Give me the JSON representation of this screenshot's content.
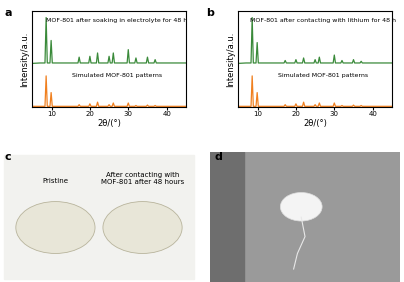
{
  "chart_data": [
    {
      "type": "line",
      "panel": "a",
      "x_label": "2θ/(°)",
      "y_label": "Intensity/a.u.",
      "xlim": [
        5,
        45
      ],
      "xticks": [
        10,
        20,
        30,
        40
      ],
      "ylim": [
        0,
        2.3
      ],
      "yticks": [],
      "tick_labels": "x",
      "x": [
        5,
        7,
        8.3,
        8.6,
        8.9,
        9.6,
        9.9,
        10.2,
        16.9,
        17.2,
        17.5,
        19.7,
        20.0,
        20.3,
        21.7,
        22.0,
        22.3,
        24.7,
        25.0,
        25.3,
        25.8,
        26.1,
        26.4,
        29.7,
        30.0,
        30.3,
        31.7,
        32.0,
        32.3,
        34.7,
        35.0,
        35.3,
        36.7,
        37.0,
        37.3,
        45
      ],
      "series": [
        {
          "name": "MOF-801 after soaking in electrolyte for 48 h",
          "color": "#3a8a3a",
          "values": [
            1.05,
            1.06,
            1.06,
            2.15,
            1.06,
            1.06,
            1.6,
            1.06,
            1.06,
            1.2,
            1.06,
            1.06,
            1.22,
            1.06,
            1.06,
            1.3,
            1.06,
            1.06,
            1.22,
            1.06,
            1.06,
            1.3,
            1.06,
            1.06,
            1.38,
            1.06,
            1.06,
            1.18,
            1.06,
            1.06,
            1.2,
            1.06,
            1.06,
            1.14,
            1.06,
            1.06
          ]
        },
        {
          "name": "Simulated MOF-801 patterns",
          "color": "#f08020",
          "values": [
            0.02,
            0.02,
            0.02,
            0.75,
            0.02,
            0.02,
            0.35,
            0.02,
            0.02,
            0.06,
            0.02,
            0.02,
            0.08,
            0.02,
            0.02,
            0.12,
            0.02,
            0.02,
            0.06,
            0.02,
            0.02,
            0.1,
            0.02,
            0.02,
            0.1,
            0.02,
            0.02,
            0.04,
            0.02,
            0.02,
            0.05,
            0.02,
            0.02,
            0.04,
            0.02,
            0.02
          ]
        }
      ]
    },
    {
      "type": "line",
      "panel": "b",
      "x_label": "2θ/(°)",
      "y_label": "Intensity/a.u.",
      "xlim": [
        5,
        45
      ],
      "xticks": [
        10,
        20,
        30,
        40
      ],
      "ylim": [
        0,
        2.3
      ],
      "yticks": [],
      "tick_labels": "x",
      "x": [
        5,
        7,
        8.3,
        8.6,
        8.9,
        9.6,
        9.9,
        10.2,
        16.9,
        17.2,
        17.5,
        19.7,
        20.0,
        20.3,
        21.7,
        22.0,
        22.3,
        24.7,
        25.0,
        25.3,
        25.8,
        26.1,
        26.4,
        29.7,
        30.0,
        30.3,
        31.7,
        32.0,
        32.3,
        34.7,
        35.0,
        35.3,
        36.7,
        37.0,
        37.3,
        45
      ],
      "series": [
        {
          "name": "MOF-801 after contacting with lithium for 48 h",
          "color": "#3a8a3a",
          "values": [
            1.05,
            1.06,
            1.06,
            2.15,
            1.06,
            1.06,
            1.55,
            1.06,
            1.06,
            1.12,
            1.06,
            1.06,
            1.14,
            1.06,
            1.06,
            1.18,
            1.06,
            1.06,
            1.14,
            1.06,
            1.06,
            1.2,
            1.06,
            1.06,
            1.25,
            1.06,
            1.06,
            1.12,
            1.06,
            1.06,
            1.14,
            1.06,
            1.06,
            1.1,
            1.06,
            1.06
          ]
        },
        {
          "name": "Simulated MOF-801 patterns",
          "color": "#f08020",
          "values": [
            0.02,
            0.02,
            0.02,
            0.75,
            0.02,
            0.02,
            0.35,
            0.02,
            0.02,
            0.06,
            0.02,
            0.02,
            0.08,
            0.02,
            0.02,
            0.12,
            0.02,
            0.02,
            0.06,
            0.02,
            0.02,
            0.1,
            0.02,
            0.02,
            0.1,
            0.02,
            0.02,
            0.04,
            0.02,
            0.02,
            0.05,
            0.02,
            0.02,
            0.04,
            0.02,
            0.02
          ]
        }
      ]
    }
  ],
  "photos": [
    {
      "panel": "c",
      "captions": [
        "Pristine",
        "After contacting with MOF-801 after 48 hours"
      ]
    },
    {
      "panel": "d"
    }
  ]
}
